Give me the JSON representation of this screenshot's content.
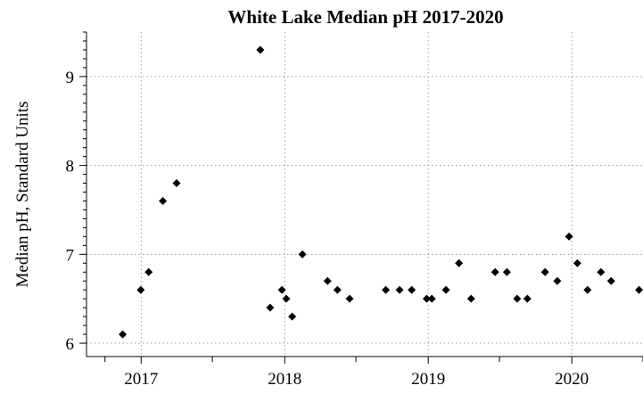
{
  "chart_data": {
    "type": "scatter",
    "title": "White Lake Median pH  2017-2020",
    "xlabel": "",
    "ylabel": "Median pH, Standard Units",
    "x_type": "date",
    "xlim": [
      "2016-08-15",
      "2020-06-30"
    ],
    "ylim": [
      5.85,
      9.5
    ],
    "x_ticks": [
      {
        "value": "2017-01-01",
        "label": "2017"
      },
      {
        "value": "2018-01-01",
        "label": "2018"
      },
      {
        "value": "2019-01-01",
        "label": "2019"
      },
      {
        "value": "2020-01-01",
        "label": "2020"
      }
    ],
    "x_minor_ticks": [
      "2016-10-01",
      "2017-07-01",
      "2018-07-01",
      "2019-07-01",
      "2020-06-30"
    ],
    "y_ticks": [
      {
        "value": 6,
        "label": "6"
      },
      {
        "value": 7,
        "label": "7"
      },
      {
        "value": 8,
        "label": "8"
      },
      {
        "value": 9,
        "label": "9"
      }
    ],
    "grid": true,
    "marker": "diamond",
    "marker_color": "#000000",
    "series": [
      {
        "points": [
          {
            "x": "2016-11-15",
            "y": 6.1
          },
          {
            "x": "2016-12-31",
            "y": 6.6
          },
          {
            "x": "2017-01-20",
            "y": 6.8
          },
          {
            "x": "2017-02-25",
            "y": 7.6
          },
          {
            "x": "2017-04-01",
            "y": 7.8
          },
          {
            "x": "2017-10-31",
            "y": 9.3
          },
          {
            "x": "2017-11-25",
            "y": 6.4
          },
          {
            "x": "2017-12-25",
            "y": 6.6
          },
          {
            "x": "2018-01-05",
            "y": 6.5
          },
          {
            "x": "2018-01-20",
            "y": 6.3
          },
          {
            "x": "2018-02-15",
            "y": 7.0
          },
          {
            "x": "2018-04-20",
            "y": 6.7
          },
          {
            "x": "2018-05-15",
            "y": 6.6
          },
          {
            "x": "2018-06-15",
            "y": 6.5
          },
          {
            "x": "2018-09-15",
            "y": 6.6
          },
          {
            "x": "2018-10-20",
            "y": 6.6
          },
          {
            "x": "2018-11-20",
            "y": 6.6
          },
          {
            "x": "2018-12-28",
            "y": 6.5
          },
          {
            "x": "2019-01-10",
            "y": 6.5
          },
          {
            "x": "2019-02-15",
            "y": 6.6
          },
          {
            "x": "2019-03-20",
            "y": 6.9
          },
          {
            "x": "2019-04-20",
            "y": 6.5
          },
          {
            "x": "2019-06-20",
            "y": 6.8
          },
          {
            "x": "2019-07-20",
            "y": 6.8
          },
          {
            "x": "2019-08-15",
            "y": 6.5
          },
          {
            "x": "2019-09-10",
            "y": 6.5
          },
          {
            "x": "2019-10-25",
            "y": 6.8
          },
          {
            "x": "2019-11-25",
            "y": 6.7
          },
          {
            "x": "2019-12-25",
            "y": 7.2
          },
          {
            "x": "2020-01-15",
            "y": 6.9
          },
          {
            "x": "2020-02-10",
            "y": 6.6
          },
          {
            "x": "2020-03-15",
            "y": 6.8
          },
          {
            "x": "2020-04-10",
            "y": 6.7
          },
          {
            "x": "2020-06-20",
            "y": 6.6
          }
        ]
      }
    ]
  }
}
